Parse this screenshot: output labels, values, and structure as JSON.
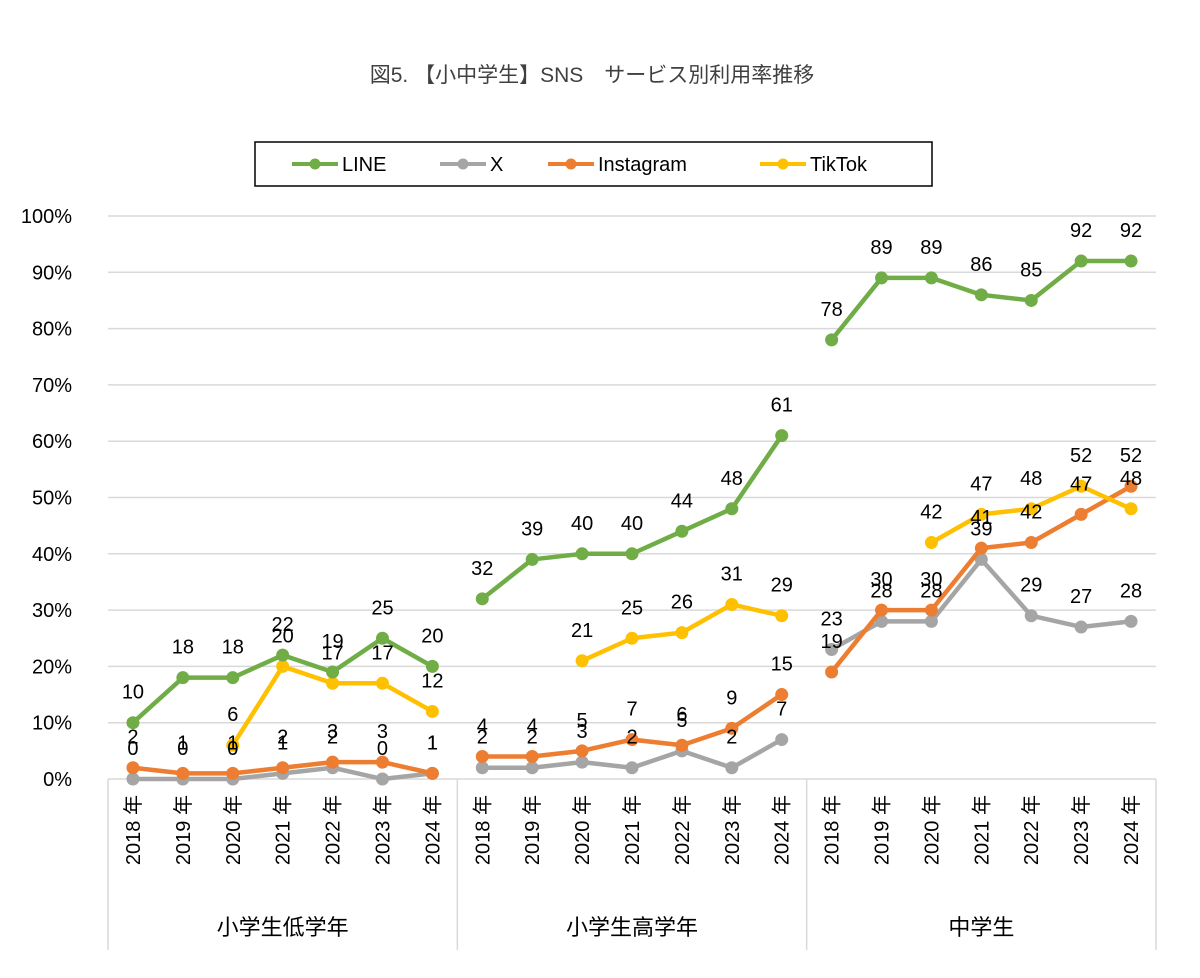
{
  "chart_data": {
    "type": "line",
    "title": "図5. 【小中学生】SNS　サービス別利用率推移",
    "xlabel": "",
    "ylabel": "",
    "ylim": [
      0,
      100
    ],
    "yticks": [
      "0%",
      "10%",
      "20%",
      "30%",
      "40%",
      "50%",
      "60%",
      "70%",
      "80%",
      "90%",
      "100%"
    ],
    "grid": true,
    "legend_position": "top",
    "groups": [
      {
        "name": "小学生低学年",
        "years": [
          "2018 年",
          "2019 年",
          "2020 年",
          "2021 年",
          "2022 年",
          "2023 年",
          "2024 年"
        ]
      },
      {
        "name": "小学生高学年",
        "years": [
          "2018 年",
          "2019 年",
          "2020 年",
          "2021 年",
          "2022 年",
          "2023 年",
          "2024 年"
        ]
      },
      {
        "name": "中学生",
        "years": [
          "2018 年",
          "2019 年",
          "2020 年",
          "2021 年",
          "2022 年",
          "2023 年",
          "2024 年"
        ]
      }
    ],
    "series": [
      {
        "name": "LINE",
        "color": "#70AD47",
        "values": [
          [
            10,
            18,
            18,
            22,
            19,
            25,
            20
          ],
          [
            32,
            39,
            40,
            40,
            44,
            48,
            61
          ],
          [
            78,
            89,
            89,
            86,
            85,
            92,
            92
          ]
        ]
      },
      {
        "name": "X",
        "color": "#A5A5A5",
        "values": [
          [
            0,
            0,
            0,
            1,
            2,
            0,
            1
          ],
          [
            2,
            2,
            3,
            2,
            5,
            2,
            7
          ],
          [
            23,
            28,
            28,
            39,
            29,
            27,
            28
          ]
        ]
      },
      {
        "name": "Instagram",
        "color": "#ED7D31",
        "values": [
          [
            2,
            1,
            1,
            2,
            3,
            3,
            1
          ],
          [
            4,
            4,
            5,
            7,
            6,
            9,
            15
          ],
          [
            19,
            30,
            30,
            41,
            42,
            47,
            52
          ]
        ]
      },
      {
        "name": "TikTok",
        "color": "#FFC000",
        "values": [
          [
            null,
            null,
            6,
            20,
            17,
            17,
            12
          ],
          [
            null,
            null,
            21,
            25,
            26,
            31,
            29
          ],
          [
            null,
            null,
            42,
            47,
            48,
            52,
            48
          ]
        ]
      }
    ]
  }
}
